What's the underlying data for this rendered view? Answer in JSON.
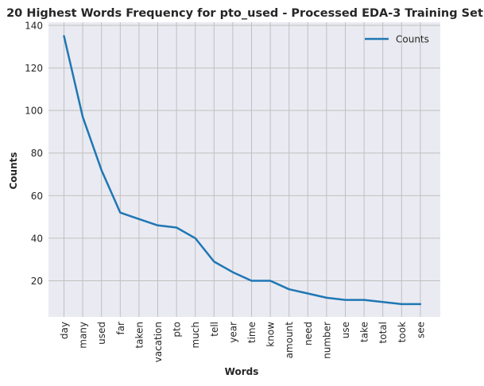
{
  "chart_data": {
    "type": "line",
    "title": "20 Highest Words Frequency for pto_used - Processed EDA-3 Training Set",
    "xlabel": "Words",
    "ylabel": "Counts",
    "categories": [
      "day",
      "many",
      "used",
      "far",
      "taken",
      "vacation",
      "pto",
      "much",
      "tell",
      "year",
      "time",
      "know",
      "amount",
      "need",
      "number",
      "use",
      "take",
      "total",
      "took",
      "see"
    ],
    "series": [
      {
        "name": "Counts",
        "values": [
          135,
          97,
          72,
          52,
          49,
          46,
          45,
          40,
          29,
          24,
          20,
          20,
          16,
          14,
          12,
          11,
          11,
          10,
          9,
          9
        ]
      }
    ],
    "yticks": [
      20,
      40,
      60,
      80,
      100,
      120,
      140
    ],
    "ylim": [
      3,
      141.5
    ],
    "grid": true,
    "legend": "top-right",
    "colors": {
      "line": "#1f77b4",
      "background": "#eaeaf2",
      "grid": "#c0c0c0",
      "text": "#262626"
    }
  }
}
